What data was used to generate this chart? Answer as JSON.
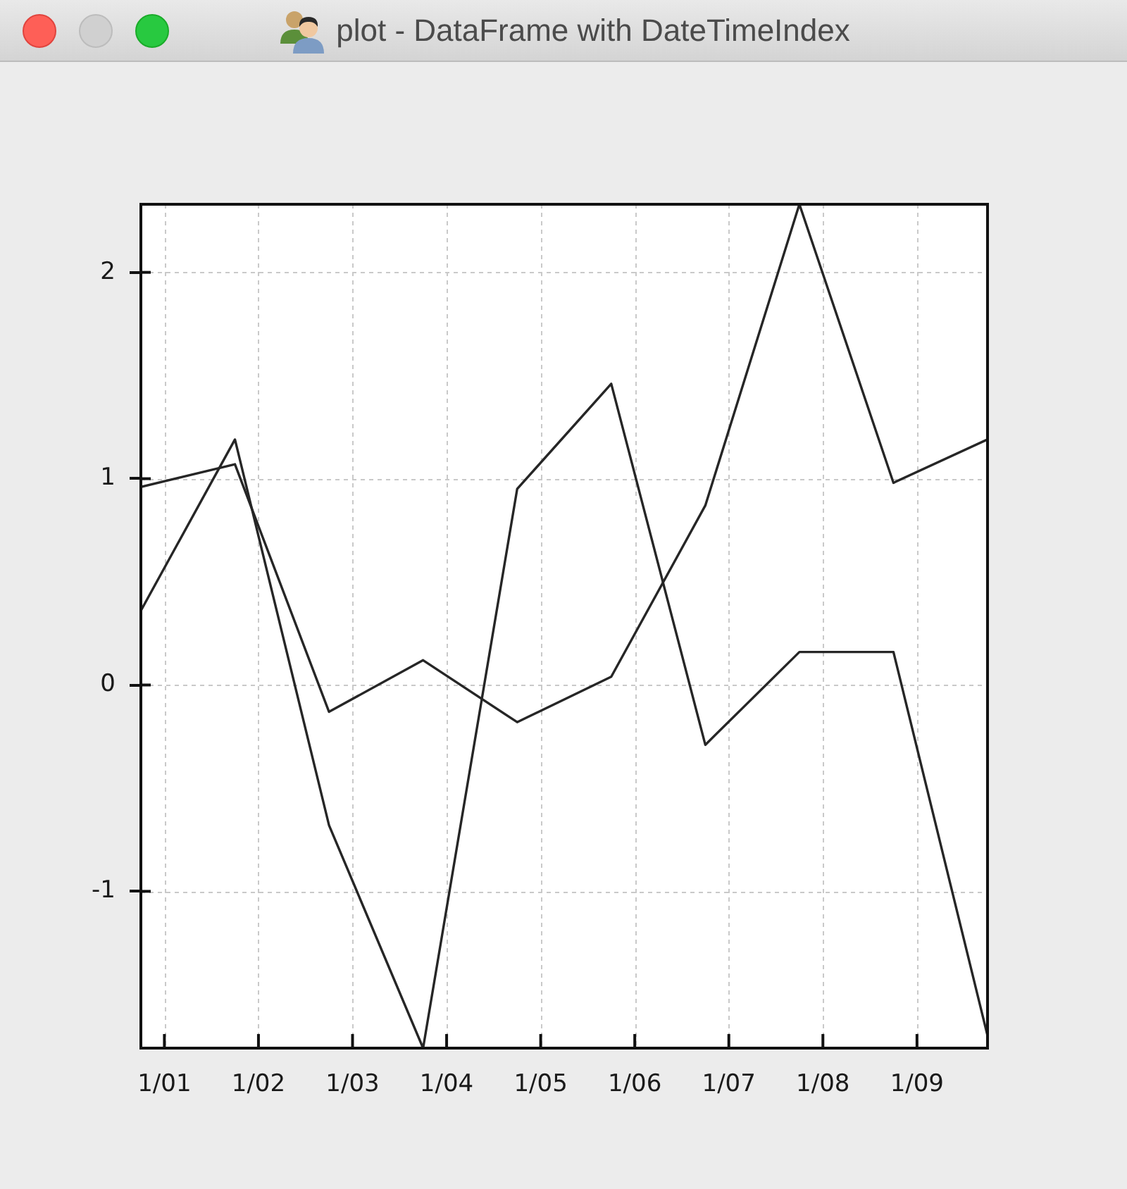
{
  "chart_data": {
    "type": "line",
    "title": "plot - DataFrame with DateTimeIndex",
    "x": [
      "2000-12-31T18:00",
      "2001-01-01T18:00",
      "2001-01-02T18:00",
      "2001-01-03T18:00",
      "2001-01-04T18:00",
      "2001-01-05T18:00",
      "2001-01-06T18:00",
      "2001-01-07T18:00",
      "2001-01-08T18:00",
      "2001-01-09T18:00"
    ],
    "series": [
      {
        "color": "#262626",
        "values": [
          0.36,
          1.19,
          -0.68,
          -1.76,
          0.95,
          1.46,
          -0.29,
          0.16,
          0.16,
          -1.7
        ]
      },
      {
        "color": "#262626",
        "values": [
          0.96,
          1.07,
          -0.13,
          0.12,
          -0.18,
          0.04,
          0.87,
          2.33,
          0.98,
          1.19
        ]
      }
    ],
    "xlim": [
      "2000-12-31T18:00",
      "2001-01-09T18:00"
    ],
    "xticks": [
      {
        "value": "--01-01",
        "label": "1/01"
      },
      {
        "value": "--01-02",
        "label": "1/02"
      },
      {
        "value": "--01-03",
        "label": "1/03"
      },
      {
        "value": "--01-04",
        "label": "1/04"
      },
      {
        "value": "--01-05",
        "label": "1/05"
      },
      {
        "value": "--01-06",
        "label": "1/06"
      },
      {
        "value": "--01-07",
        "label": "1/07"
      },
      {
        "value": "--01-08",
        "label": "1/08"
      },
      {
        "value": "--01-09",
        "label": "1/09"
      }
    ],
    "ylim": [
      -1.76,
      2.33
    ],
    "yticks": [
      -1,
      0,
      1,
      2
    ],
    "grid": true,
    "marker": "none"
  }
}
